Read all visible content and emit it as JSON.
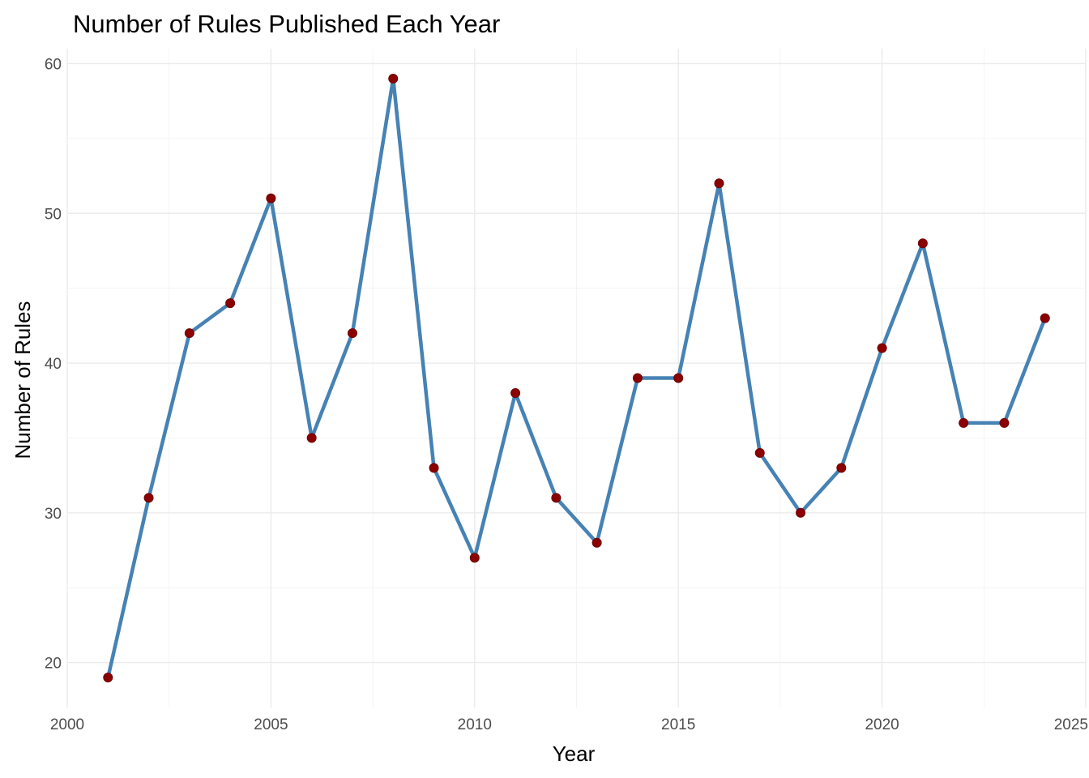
{
  "chart_data": {
    "type": "line",
    "title": "Number of Rules Published Each Year",
    "xlabel": "Year",
    "ylabel": "Number of Rules",
    "x": [
      2001,
      2002,
      2003,
      2004,
      2005,
      2006,
      2007,
      2008,
      2009,
      2010,
      2011,
      2012,
      2013,
      2014,
      2015,
      2016,
      2017,
      2018,
      2019,
      2020,
      2021,
      2022,
      2023,
      2024
    ],
    "y": [
      19,
      31,
      42,
      44,
      51,
      35,
      42,
      59,
      33,
      27,
      38,
      31,
      28,
      39,
      39,
      52,
      34,
      30,
      33,
      41,
      48,
      36,
      36,
      43
    ],
    "xlim": [
      2000,
      2025
    ],
    "ylim": [
      17.0,
      61.0
    ],
    "x_ticks": [
      2000,
      2005,
      2010,
      2015,
      2020,
      2025
    ],
    "x_tick_labels": [
      "2000",
      "2005",
      "2010",
      "2015",
      "2020",
      "2025"
    ],
    "y_ticks": [
      20,
      30,
      40,
      50,
      60
    ],
    "y_tick_labels": [
      "20",
      "30",
      "40",
      "50",
      "60"
    ],
    "grid": true,
    "legend": "none",
    "colors": {
      "line": "#4682b4",
      "point_fill": "#8b0000",
      "point_stroke": "#6e0000"
    }
  }
}
